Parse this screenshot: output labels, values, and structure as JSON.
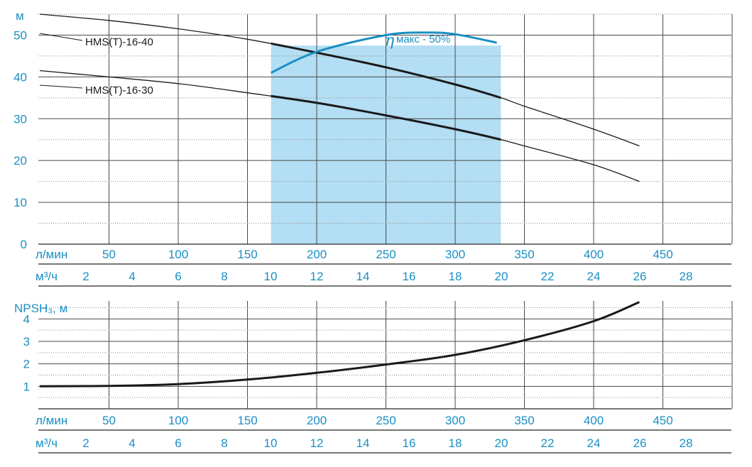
{
  "colors": {
    "axis_text": "#1a8fc4",
    "grid_major": "#4a4a4a",
    "grid_minor": "#8a8a8a",
    "efficiency_band": "#b3def4",
    "efficiency_curve": "#1a8fc4",
    "curve": "#1a1a1a"
  },
  "chart_data": [
    {
      "type": "line",
      "ylabel": "м",
      "xlim_lmin": [
        0,
        500
      ],
      "ylim": [
        0,
        55
      ],
      "grid": true,
      "y_ticks": [
        "0",
        "10",
        "20",
        "30",
        "40",
        "50"
      ],
      "series": [
        {
          "name": "HMS(T)-16-40",
          "x_lmin": [
            0,
            50,
            100,
            150,
            200,
            250,
            300,
            333,
            350,
            400,
            433
          ],
          "y": [
            55,
            53.5,
            51.5,
            49,
            45.8,
            42.3,
            38.2,
            35,
            33,
            27.5,
            23.5
          ]
        },
        {
          "name": "HMS(T)-16-30",
          "x_lmin": [
            0,
            50,
            100,
            150,
            200,
            250,
            300,
            333,
            350,
            400,
            433
          ],
          "y": [
            41.5,
            40,
            38.4,
            36.2,
            33.8,
            30.8,
            27.5,
            25,
            23.5,
            19,
            15
          ]
        }
      ],
      "efficiency_curve": {
        "label_symbol": "η",
        "label_text": "макс - 50%",
        "x_lmin": [
          167,
          200,
          250,
          280,
          300,
          330
        ],
        "y": [
          41,
          46,
          50,
          50.6,
          50.2,
          48.2
        ]
      },
      "efficiency_band_lmin": [
        167,
        333
      ]
    },
    {
      "type": "line",
      "ylabel": "NPSH₃, м",
      "xlim_lmin": [
        0,
        500
      ],
      "ylim": [
        0,
        4.8
      ],
      "grid": true,
      "y_ticks": [
        "1",
        "2",
        "3",
        "4"
      ],
      "series": [
        {
          "x_lmin": [
            0,
            50,
            100,
            150,
            200,
            250,
            300,
            350,
            400,
            433
          ],
          "y": [
            1,
            1.02,
            1.1,
            1.3,
            1.6,
            1.97,
            2.4,
            3.05,
            3.9,
            4.75
          ]
        }
      ]
    }
  ],
  "x_axis_lmin": {
    "unit": "л/мин",
    "ticks": [
      "50",
      "100",
      "150",
      "200",
      "250",
      "300",
      "350",
      "400",
      "450"
    ]
  },
  "x_axis_m3h": {
    "unit": "м³/ч",
    "ticks": [
      "2",
      "4",
      "6",
      "8",
      "10",
      "12",
      "14",
      "16",
      "18",
      "20",
      "22",
      "24",
      "26",
      "28"
    ]
  }
}
